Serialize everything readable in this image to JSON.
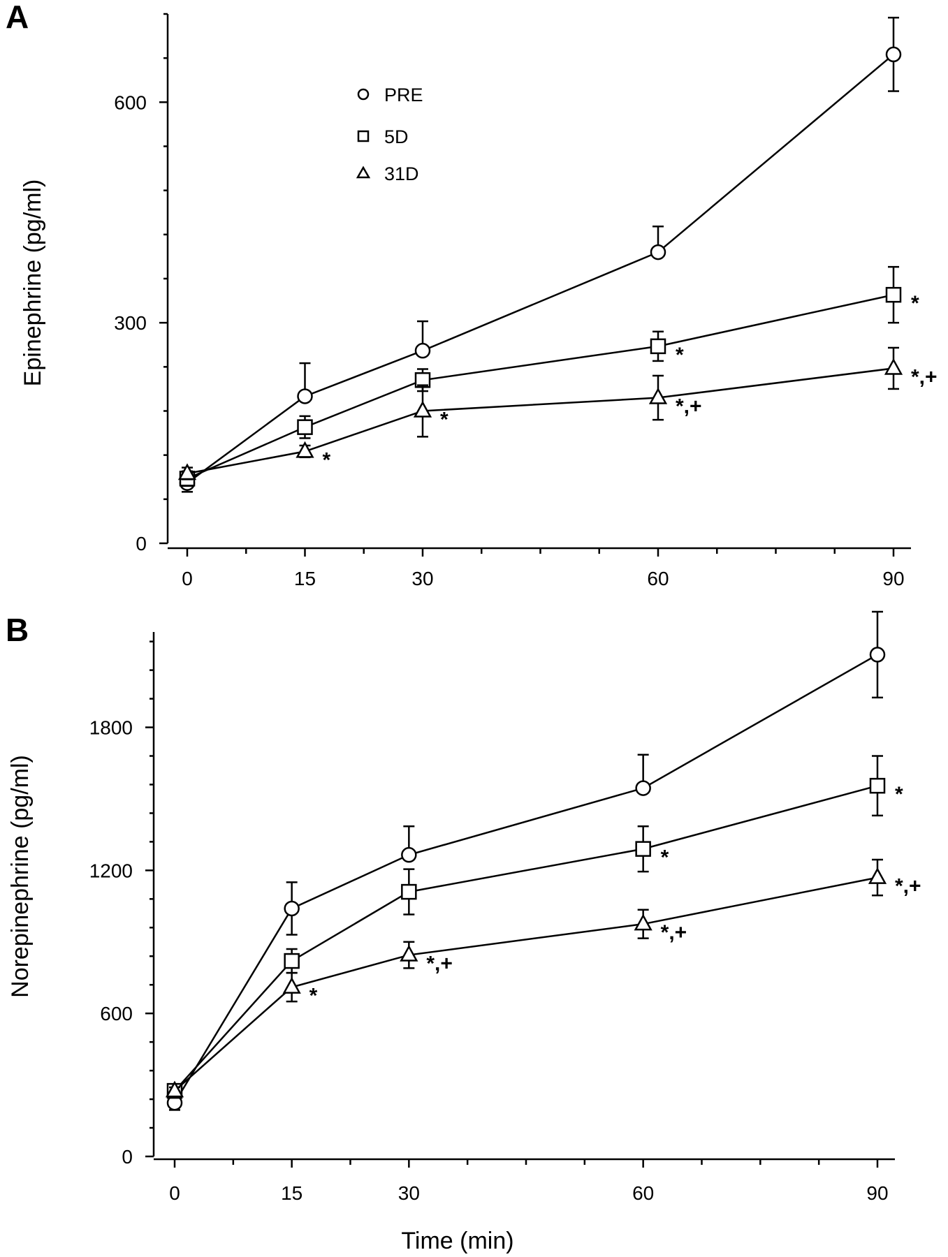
{
  "chart_data": [
    {
      "panel": "A",
      "type": "line",
      "title": "",
      "xlabel": "",
      "ylabel": "Epinephrine (pg/ml)",
      "x": [
        0,
        15,
        30,
        60,
        90
      ],
      "x_tick_labels": [
        "0",
        "15",
        "30",
        "60",
        "90"
      ],
      "xlim": [
        -3,
        95
      ],
      "ylim": [
        0,
        720
      ],
      "y_ticks": [
        0,
        300,
        600
      ],
      "y_tick_labels": [
        "0",
        "300",
        "600"
      ],
      "legend_position": "top-left",
      "series": [
        {
          "name": "PRE",
          "marker": "circle",
          "values": [
            82,
            200,
            262,
            396,
            665
          ],
          "errors": [
            12,
            45,
            40,
            35,
            50
          ],
          "annotations": [
            "",
            "",
            "",
            "",
            ""
          ]
        },
        {
          "name": "5D",
          "marker": "square",
          "values": [
            88,
            158,
            222,
            268,
            338
          ],
          "errors": [
            10,
            15,
            15,
            20,
            38
          ],
          "annotations": [
            "",
            "",
            "",
            "*",
            "*"
          ]
        },
        {
          "name": "31D",
          "marker": "triangle",
          "values": [
            95,
            125,
            180,
            198,
            238
          ],
          "errors": [
            8,
            8,
            35,
            30,
            28
          ],
          "annotations": [
            "",
            "*",
            "*",
            "*,+",
            "*,+"
          ]
        }
      ]
    },
    {
      "panel": "B",
      "type": "line",
      "title": "",
      "xlabel": "Time (min)",
      "ylabel": "Norepinephrine (pg/ml)",
      "x": [
        0,
        15,
        30,
        60,
        90
      ],
      "x_tick_labels": [
        "0",
        "15",
        "30",
        "60",
        "90"
      ],
      "xlim": [
        -3,
        95
      ],
      "ylim": [
        0,
        2200
      ],
      "y_ticks": [
        0,
        600,
        1200,
        1800
      ],
      "y_tick_labels": [
        "0",
        "600",
        "1200",
        "1800"
      ],
      "series": [
        {
          "name": "PRE",
          "marker": "circle",
          "values": [
            225,
            1040,
            1265,
            1545,
            2105
          ],
          "errors": [
            30,
            110,
            120,
            140,
            180
          ],
          "annotations": [
            "",
            "",
            "",
            "",
            ""
          ]
        },
        {
          "name": "5D",
          "marker": "square",
          "values": [
            275,
            820,
            1110,
            1290,
            1555
          ],
          "errors": [
            20,
            50,
            95,
            95,
            125
          ],
          "annotations": [
            "",
            "",
            "",
            "*",
            "*"
          ]
        },
        {
          "name": "31D",
          "marker": "triangle",
          "values": [
            275,
            710,
            845,
            975,
            1170
          ],
          "errors": [
            15,
            60,
            55,
            60,
            75
          ],
          "annotations": [
            "",
            "*",
            "*,+",
            "*,+",
            "*,+"
          ]
        }
      ]
    }
  ]
}
